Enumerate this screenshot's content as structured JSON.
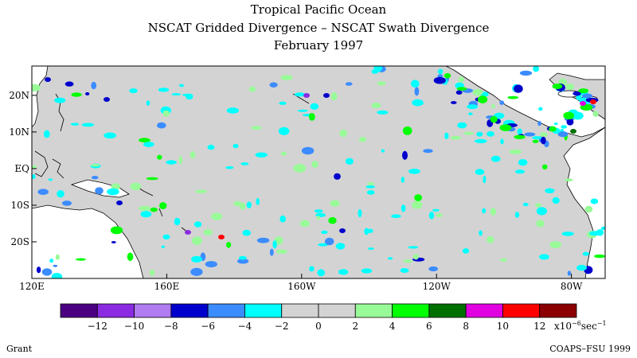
{
  "title": {
    "line1": "Tropical Pacific Ocean",
    "line2": "NSCAT Gridded Divergence – NSCAT Swath Divergence",
    "line3": "February 1997"
  },
  "map": {
    "lon_range": [
      120,
      290
    ],
    "lat_range": [
      -30,
      28
    ],
    "lat_labels": [
      {
        "text": "20N",
        "lat": 20
      },
      {
        "text": "10N",
        "lat": 10
      },
      {
        "text": "EQ",
        "lat": 0
      },
      {
        "text": "10S",
        "lat": -10
      },
      {
        "text": "20S",
        "lat": -20
      }
    ],
    "lon_labels": [
      {
        "text": "120E",
        "lon": 120
      },
      {
        "text": "160E",
        "lon": 160
      },
      {
        "text": "160W",
        "lon": 200
      },
      {
        "text": "120W",
        "lon": 240
      },
      {
        "text": "80W",
        "lon": 280
      }
    ],
    "background_color": "#d3d3d3",
    "land_color": "#ffffff"
  },
  "colorbar": {
    "colors": [
      "#4b0082",
      "#8a2be2",
      "#b07cf0",
      "#0000cd",
      "#3b8cff",
      "#00ffff",
      "#d3d3d3",
      "#d3d3d3",
      "#98fb98",
      "#00ff00",
      "#007000",
      "#e000e0",
      "#ff0000",
      "#8b0000"
    ],
    "tick_labels": [
      "−12",
      "−10",
      "−8",
      "−6",
      "−4",
      "−2",
      "0",
      "2",
      "4",
      "6",
      "8",
      "10",
      "12"
    ],
    "units_prefix": "x10",
    "units_exp": "−6",
    "units_suffix": "sec",
    "units_exp2": "−1"
  },
  "footer": {
    "author": "Grant",
    "credit": "COAPS–FSU 1999"
  }
}
